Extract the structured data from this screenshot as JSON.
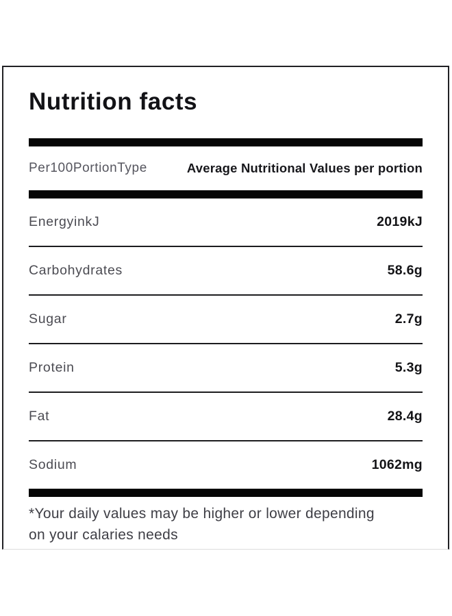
{
  "title": "Nutrition facts",
  "header": {
    "left": "Per100PortionType",
    "right": "Average Nutritional Values per portion"
  },
  "rows": [
    {
      "name": "EnergyinkJ",
      "value": "2019kJ"
    },
    {
      "name": "Carbohydrates",
      "value": "58.6g"
    },
    {
      "name": "Sugar",
      "value": "2.7g"
    },
    {
      "name": "Protein",
      "value": "5.3g"
    },
    {
      "name": "Fat",
      "value": "28.4g"
    },
    {
      "name": "Sodium",
      "value": "1062mg"
    }
  ],
  "footnote_line1": "*Your daily values may be higher or lower depending",
  "footnote_line2": "on your calaries needs",
  "colors": {
    "divider_bar": "#060606",
    "row_separator": "#1b1b1e",
    "label_text": "#4b4b52",
    "value_text": "#131316",
    "card_border": "#202024",
    "background": "#ffffff"
  }
}
